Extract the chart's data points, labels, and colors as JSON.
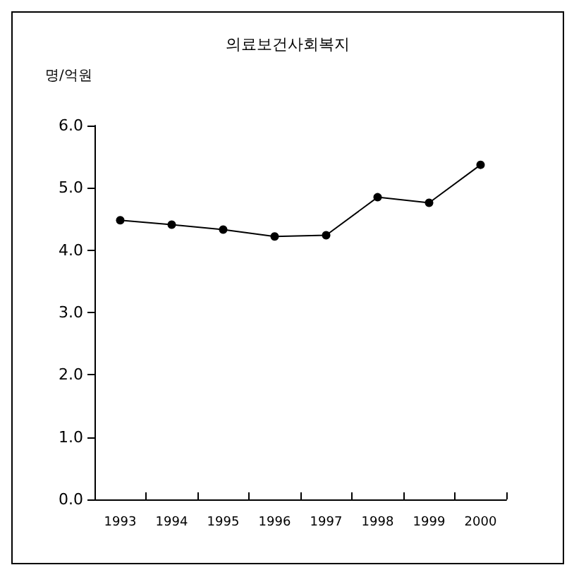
{
  "chart_data": {
    "type": "line",
    "title": "의료보건사회복지",
    "ylabel": "명/억원",
    "categories": [
      "1993",
      "1994",
      "1995",
      "1996",
      "1997",
      "1998",
      "1999",
      "2000"
    ],
    "series": [
      {
        "color": "#000000",
        "values": [
          4.48,
          4.41,
          4.33,
          4.22,
          4.24,
          4.85,
          4.76,
          5.37
        ]
      }
    ],
    "ylim": [
      0,
      6
    ],
    "yticks": [
      {
        "value": 0,
        "label": "0.0"
      },
      {
        "value": 1,
        "label": "1.0"
      },
      {
        "value": 2,
        "label": "2.0"
      },
      {
        "value": 3,
        "label": "3.0"
      },
      {
        "value": 4,
        "label": "4.0"
      },
      {
        "value": 5,
        "label": "5.0"
      },
      {
        "value": 6,
        "label": "6.0"
      }
    ],
    "grid": false,
    "marker": "circle",
    "line_style": "solid"
  }
}
